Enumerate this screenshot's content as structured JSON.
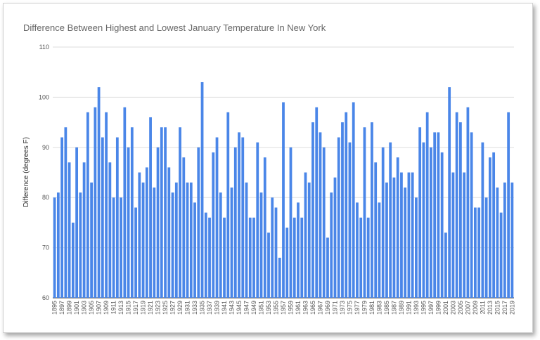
{
  "chart_data": {
    "type": "bar",
    "title": "Difference Between Highest and Lowest January Temperature In New York",
    "y_label": "Difference (degrees F)",
    "color": "#4a86e8",
    "grid": true,
    "ylim": [
      60,
      110
    ],
    "yticks": [
      60,
      70,
      80,
      90,
      100,
      110
    ],
    "categories": [
      "1895",
      null,
      "1897",
      null,
      "1899",
      null,
      "1901",
      null,
      "1903",
      null,
      "1905",
      null,
      "1907",
      null,
      "1909",
      null,
      "1911",
      null,
      "1913",
      null,
      "1915",
      null,
      "1917",
      null,
      "1919",
      null,
      "1921",
      null,
      "1923",
      null,
      "1925",
      null,
      "1927",
      null,
      "1929",
      null,
      "1931",
      null,
      "1933",
      null,
      "1935",
      null,
      "1937",
      null,
      "1939",
      null,
      "1941",
      null,
      "1943",
      null,
      "1945",
      null,
      "1947",
      null,
      "1949",
      null,
      "1951",
      null,
      "1953",
      null,
      "1955",
      null,
      "1957",
      null,
      "1959",
      null,
      "1961",
      null,
      "1963",
      null,
      "1965",
      null,
      "1967",
      null,
      "1969",
      null,
      "1971",
      null,
      "1973",
      null,
      "1975",
      null,
      "1977",
      null,
      "1979",
      null,
      "1981",
      null,
      "1983",
      null,
      "1985",
      null,
      "1987",
      null,
      "1989",
      null,
      "1991",
      null,
      "1993",
      null,
      "1995",
      null,
      "1997",
      null,
      "1999",
      null,
      "2001",
      null,
      "2003",
      null,
      "2005",
      null,
      "2007",
      null,
      "2009",
      null,
      "2011",
      null,
      "2013",
      null,
      "2015",
      null,
      "2017",
      null,
      "2019"
    ],
    "values": [
      80,
      81,
      92,
      94,
      87,
      75,
      90,
      81,
      87,
      97,
      83,
      98,
      102,
      92,
      97,
      87,
      80,
      92,
      80,
      98,
      90,
      94,
      78,
      85,
      83,
      86,
      96,
      82,
      90,
      94,
      94,
      86,
      81,
      83,
      94,
      88,
      83,
      83,
      79,
      90,
      103,
      77,
      76,
      89,
      92,
      81,
      76,
      97,
      82,
      90,
      93,
      92,
      83,
      76,
      76,
      91,
      81,
      88,
      73,
      80,
      78,
      68,
      99,
      74,
      90,
      76,
      79,
      76,
      85,
      83,
      95,
      98,
      93,
      90,
      72,
      81,
      84,
      92,
      95,
      97,
      91,
      99,
      79,
      76,
      94,
      76,
      95,
      87,
      79,
      90,
      83,
      91,
      84,
      88,
      85,
      82,
      85,
      85,
      80,
      94,
      91,
      97,
      90,
      93,
      93,
      89,
      73,
      102,
      85,
      97,
      95,
      85,
      98,
      93,
      78,
      78,
      91,
      80,
      88,
      89,
      82,
      77,
      83,
      97,
      83
    ]
  }
}
